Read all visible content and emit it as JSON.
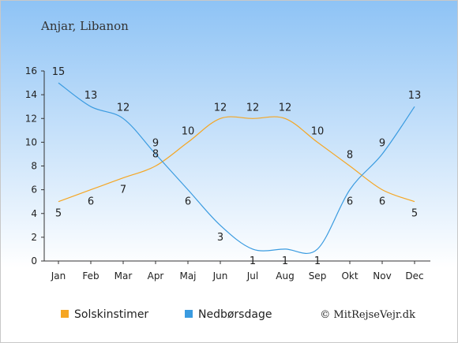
{
  "place_title": "Anjar, Libanon",
  "credit": "© MitRejseVejr.dk",
  "colors": {
    "sunshine": "#f5a623",
    "rain": "#3a9be0",
    "bg_top": "#8ec3f5",
    "bg_bottom": "#ffffff"
  },
  "chart_data": {
    "type": "line",
    "title": "",
    "xlabel": "",
    "ylabel": "",
    "categories": [
      "Jan",
      "Feb",
      "Mar",
      "Apr",
      "Maj",
      "Jun",
      "Jul",
      "Aug",
      "Sep",
      "Okt",
      "Nov",
      "Dec"
    ],
    "yticks": [
      0,
      2,
      4,
      6,
      8,
      10,
      12,
      14,
      16
    ],
    "ylim": [
      0,
      16
    ],
    "grid": false,
    "legend_position": "bottom",
    "series": [
      {
        "name": "Solskinstimer",
        "values": [
          5,
          6,
          7,
          8,
          10,
          12,
          12,
          12,
          10,
          8,
          6,
          5
        ]
      },
      {
        "name": "Nedbørsdage",
        "values": [
          15,
          13,
          12,
          9,
          6,
          3,
          1,
          1,
          1,
          6,
          9,
          13
        ]
      }
    ]
  }
}
